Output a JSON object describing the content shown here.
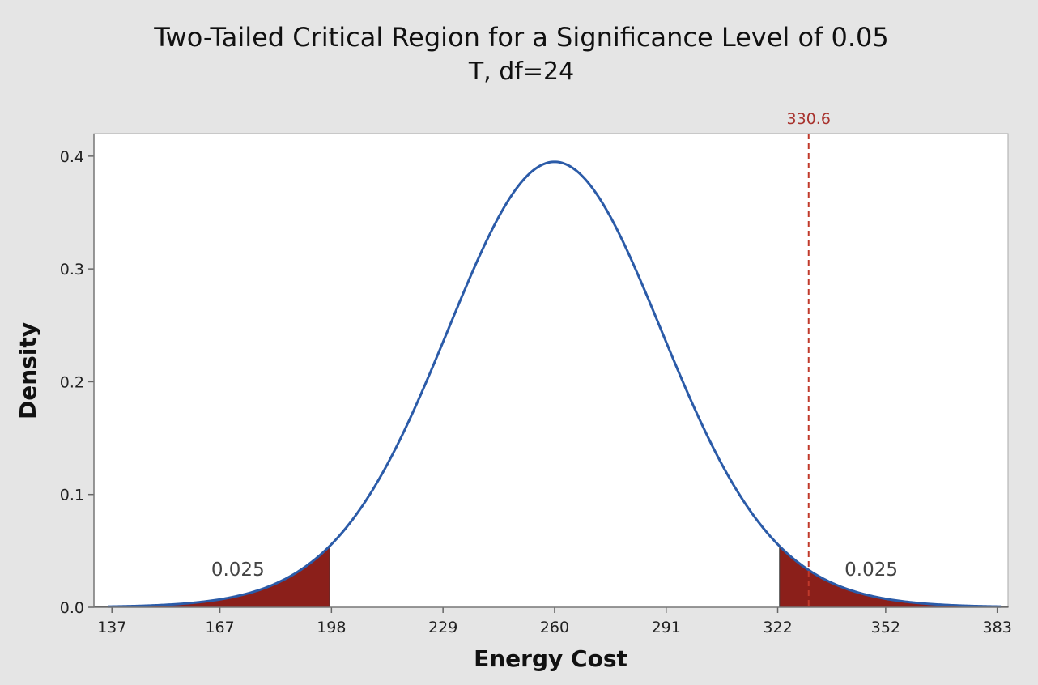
{
  "chart_data": {
    "type": "line",
    "title": "Two-Tailed Critical Region for a Significance Level of 0.05",
    "subtitle": "T, df=24",
    "xlabel": "Energy Cost",
    "ylabel": "Density",
    "distribution": {
      "name": "T",
      "df": 24,
      "loc": 260,
      "scale": 30.75
    },
    "xlim": [
      132,
      386
    ],
    "ylim": [
      0,
      0.42
    ],
    "x_ticks": [
      137,
      167,
      198,
      229,
      260,
      291,
      322,
      352,
      383
    ],
    "y_ticks": [
      0.0,
      0.1,
      0.2,
      0.3,
      0.4
    ],
    "y_tick_labels": [
      "0.0",
      "0.1",
      "0.2",
      "0.3",
      "0.4"
    ],
    "shaded_regions": [
      {
        "from": 132,
        "to": 197.5,
        "area_label": "0.025",
        "label_x": 172,
        "label_y": 0.028
      },
      {
        "from": 322.5,
        "to": 386,
        "area_label": "0.025",
        "label_x": 348,
        "label_y": 0.028
      }
    ],
    "reference_line": {
      "x": 330.6,
      "label": "330.6",
      "style": "dashed"
    },
    "colors": {
      "curve": "#2b5ba8",
      "shade": "#8b1f1a",
      "reference": "#c0392b",
      "reference_label": "#a8322d",
      "plot_bg": "#ffffff",
      "page_bg": "#e5e5e5"
    }
  }
}
